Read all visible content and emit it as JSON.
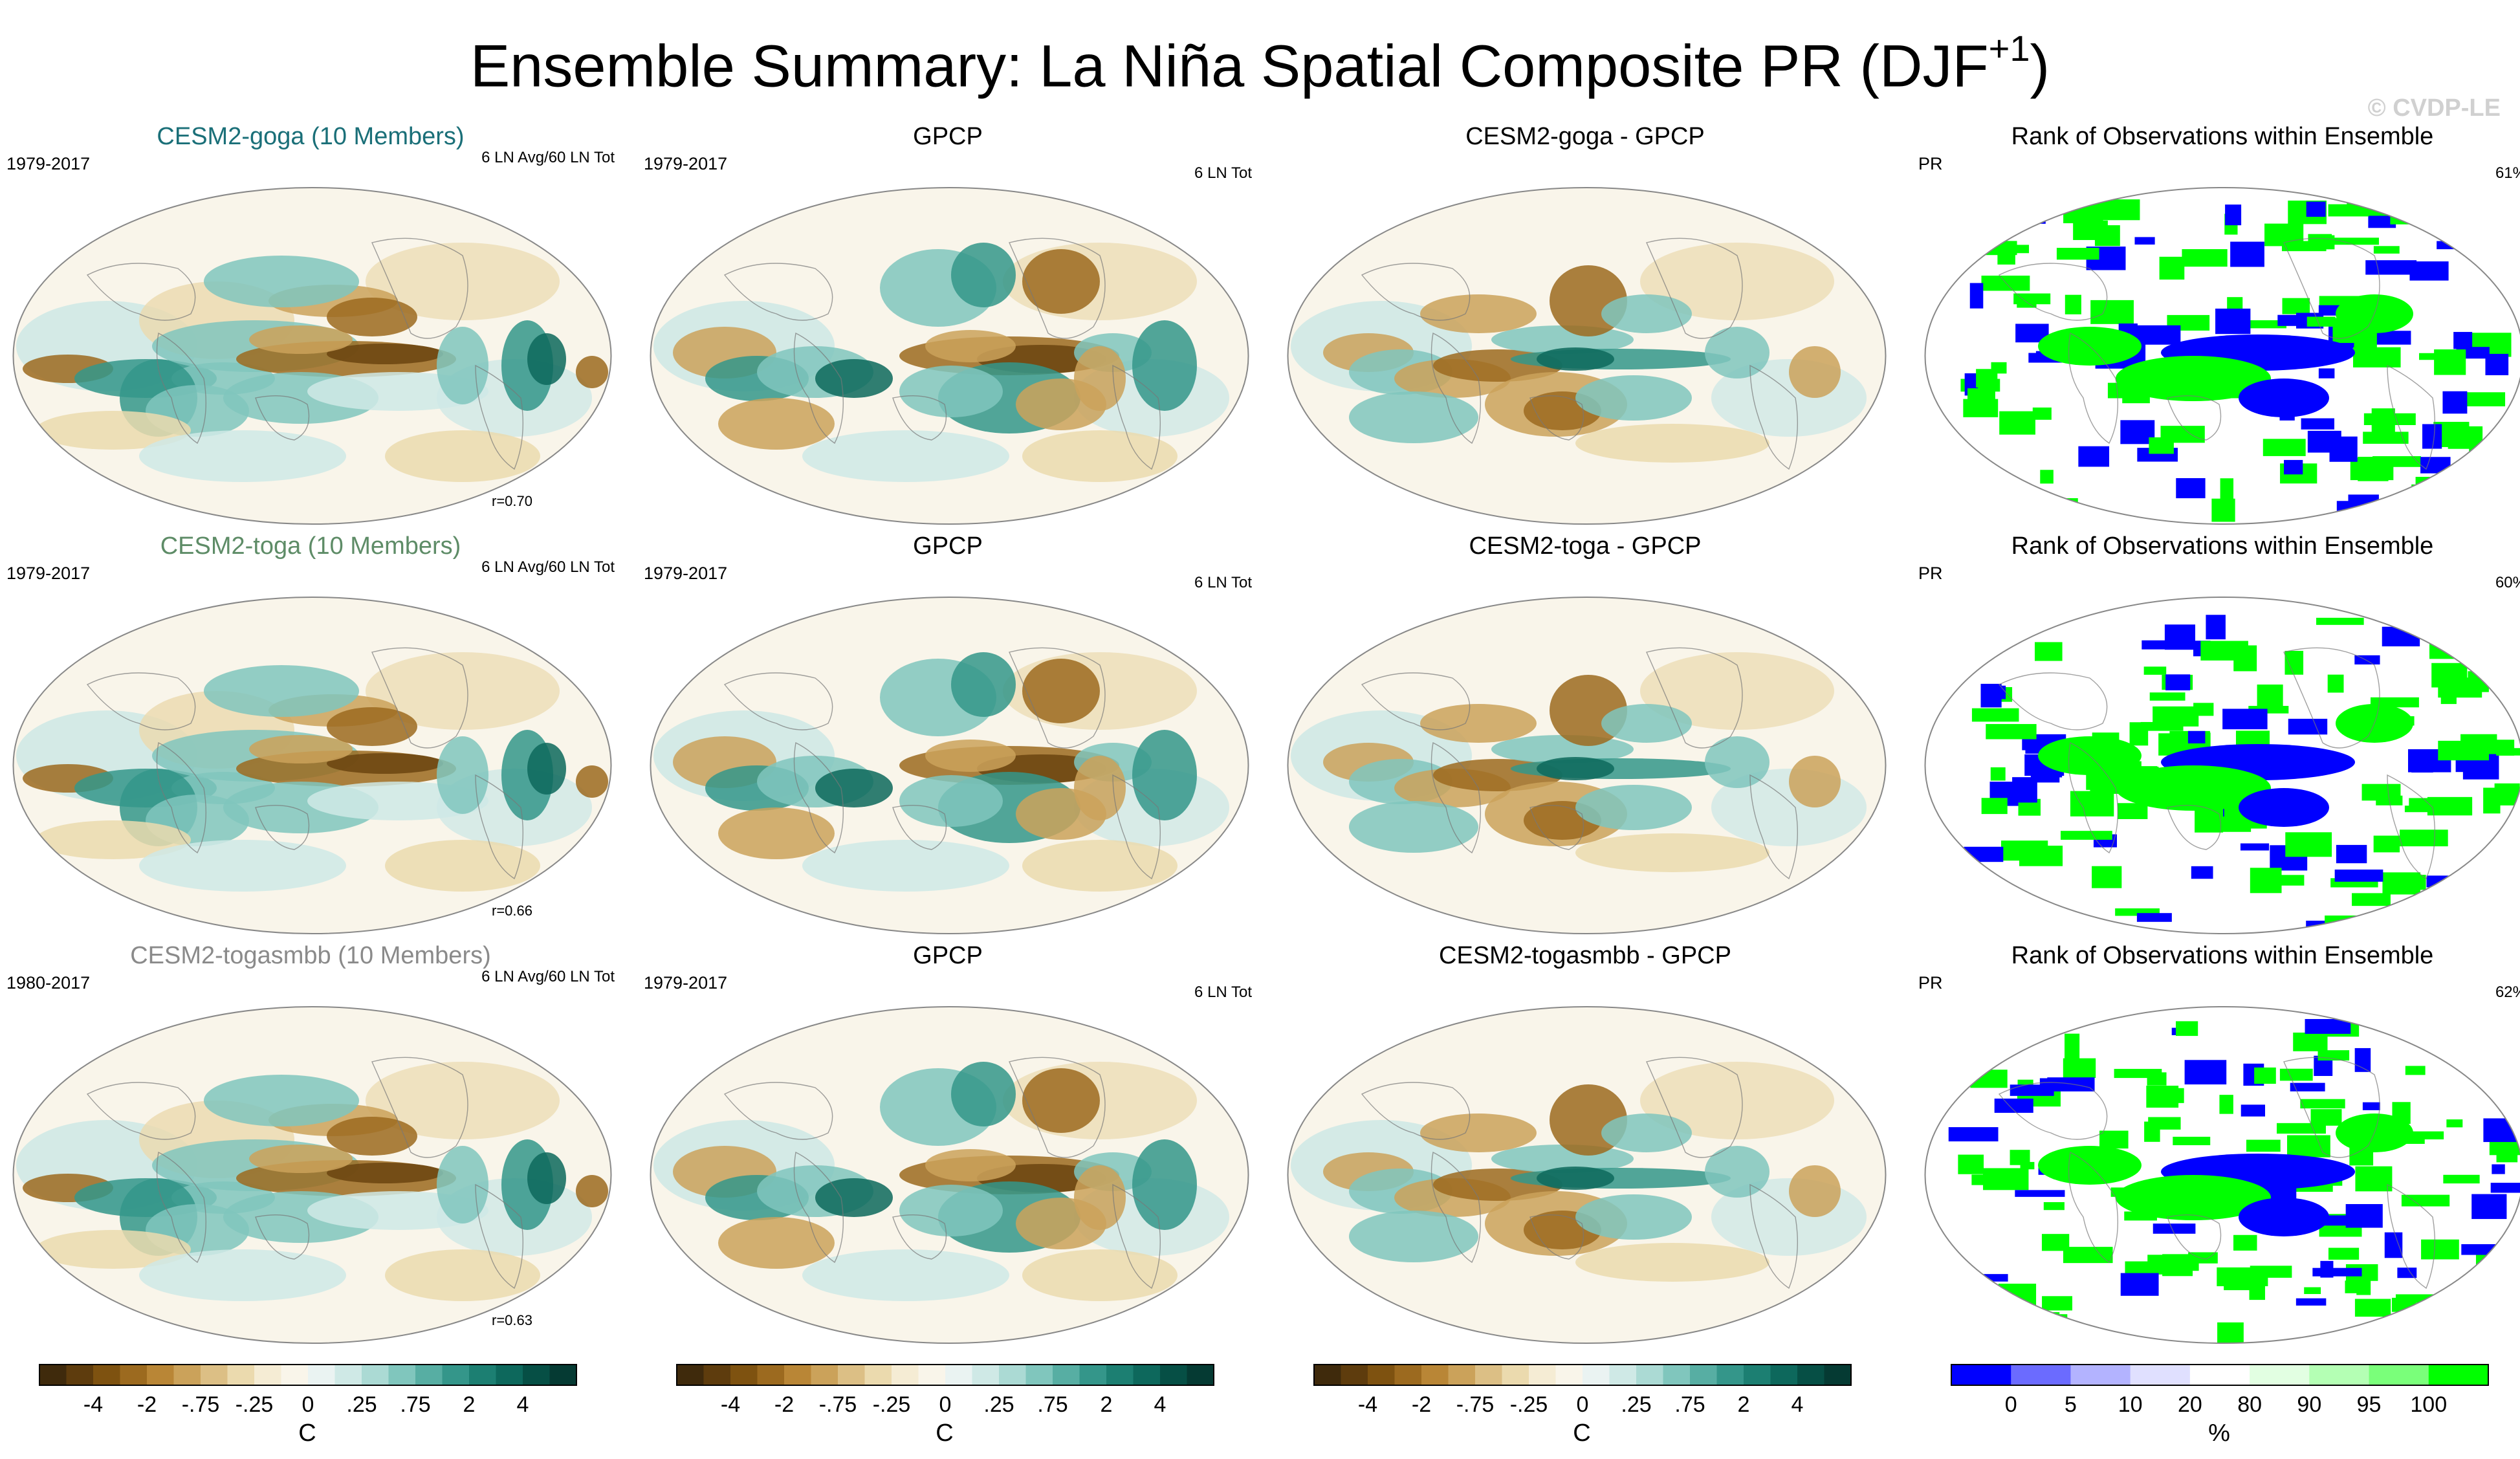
{
  "figure": {
    "title_main": "Ensemble Summary: La Niña Spatial Composite PR (DJF",
    "title_sup": "+1",
    "title_close": ")",
    "watermark": "© CVDP-LE"
  },
  "chart_data": [
    {
      "type": "heatmap",
      "row": 0,
      "col": 0,
      "title": "CESM2-goga (10 Members)",
      "title_color": "#1a6f78",
      "years": "1979-2017",
      "note": "6 LN Avg/60 LN Tot",
      "corr": "r=0.70",
      "variant": "model"
    },
    {
      "type": "heatmap",
      "row": 0,
      "col": 1,
      "title": "GPCP",
      "title_color": "#000000",
      "years": "1979-2017",
      "note": "6 LN Tot",
      "variant": "obs"
    },
    {
      "type": "heatmap",
      "row": 0,
      "col": 2,
      "title": "CESM2-goga - GPCP",
      "title_color": "#000000",
      "years": "",
      "note": "",
      "variant": "diff"
    },
    {
      "type": "heatmap",
      "row": 0,
      "col": 3,
      "title": "Rank of Observations within Ensemble",
      "title_color": "#000000",
      "years": "PR",
      "note": "61%",
      "variant": "rank"
    },
    {
      "type": "heatmap",
      "row": 1,
      "col": 0,
      "title": "CESM2-toga (10 Members)",
      "title_color": "#5e8c67",
      "years": "1979-2017",
      "note": "6 LN Avg/60 LN Tot",
      "corr": "r=0.66",
      "variant": "model"
    },
    {
      "type": "heatmap",
      "row": 1,
      "col": 1,
      "title": "GPCP",
      "title_color": "#000000",
      "years": "1979-2017",
      "note": "6 LN Tot",
      "variant": "obs"
    },
    {
      "type": "heatmap",
      "row": 1,
      "col": 2,
      "title": "CESM2-toga - GPCP",
      "title_color": "#000000",
      "years": "",
      "note": "",
      "variant": "diff"
    },
    {
      "type": "heatmap",
      "row": 1,
      "col": 3,
      "title": "Rank of Observations within Ensemble",
      "title_color": "#000000",
      "years": "PR",
      "note": "60%",
      "variant": "rank"
    },
    {
      "type": "heatmap",
      "row": 2,
      "col": 0,
      "title": "CESM2-togasmbb (10 Members)",
      "title_color": "#8a8a8a",
      "years": "1980-2017",
      "note": "6 LN Avg/60 LN Tot",
      "corr": "r=0.63",
      "variant": "model"
    },
    {
      "type": "heatmap",
      "row": 2,
      "col": 1,
      "title": "GPCP",
      "title_color": "#000000",
      "years": "1979-2017",
      "note": "6 LN Tot",
      "variant": "obs"
    },
    {
      "type": "heatmap",
      "row": 2,
      "col": 2,
      "title": "CESM2-togasmbb - GPCP",
      "title_color": "#000000",
      "years": "",
      "note": "",
      "variant": "diff"
    },
    {
      "type": "heatmap",
      "row": 2,
      "col": 3,
      "title": "Rank of Observations within Ensemble",
      "title_color": "#000000",
      "years": "PR",
      "note": "62%",
      "variant": "rank"
    }
  ],
  "colorbars": {
    "diverging": {
      "colors": [
        "#3f2a0c",
        "#5e3c0d",
        "#7e5210",
        "#9c6a1f",
        "#b98636",
        "#cba25a",
        "#dcbf85",
        "#ebdaae",
        "#f5ecd4",
        "#f9f5ea",
        "#eaf3f2",
        "#cfe9e6",
        "#abdad4",
        "#80c6bd",
        "#57aea3",
        "#34968a",
        "#1c7f72",
        "#0d685c",
        "#064f45",
        "#053a33"
      ],
      "labels": [
        "-4",
        "-2",
        "-.75",
        "-.25",
        "0",
        ".25",
        ".75",
        "2",
        "4"
      ],
      "label_boundaries": [
        2,
        4,
        6,
        8,
        10,
        12,
        14,
        16,
        18
      ],
      "unit": "C"
    },
    "rank": {
      "colors": [
        "#0000ff",
        "#6b6bff",
        "#b3b3ff",
        "#e0e0ff",
        "#ffffff",
        "#e2ffe2",
        "#b4ffb4",
        "#7aff7a",
        "#00ff00"
      ],
      "labels": [
        "0",
        "5",
        "10",
        "20",
        "80",
        "90",
        "95",
        "100"
      ],
      "label_boundaries": [
        1,
        2,
        3,
        4,
        5,
        6,
        7,
        8
      ],
      "unit": "%"
    }
  }
}
